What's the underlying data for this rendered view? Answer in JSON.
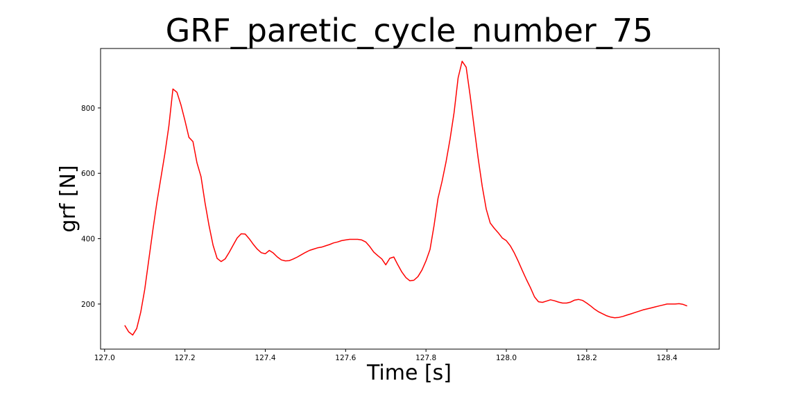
{
  "chart_data": {
    "type": "line",
    "title": "GRF_paretic_cycle_number_75",
    "xlabel": "Time [s]",
    "ylabel": "grf [N]",
    "xlim": [
      126.99,
      128.53
    ],
    "ylim": [
      62,
      982
    ],
    "xticks": [
      127.0,
      127.2,
      127.4,
      127.6,
      127.8,
      128.0,
      128.2,
      128.4
    ],
    "xtick_labels": [
      "127.0",
      "127.2",
      "127.4",
      "127.6",
      "127.8",
      "128.0",
      "128.2",
      "128.4"
    ],
    "yticks": [
      200,
      400,
      600,
      800
    ],
    "ytick_labels": [
      "200",
      "400",
      "600",
      "800"
    ],
    "grid": false,
    "legend": "none",
    "series": [
      {
        "color": "#ff0000",
        "x": [
          127.05,
          127.06,
          127.07,
          127.08,
          127.09,
          127.1,
          127.11,
          127.12,
          127.13,
          127.14,
          127.15,
          127.16,
          127.17,
          127.18,
          127.19,
          127.2,
          127.21,
          127.22,
          127.23,
          127.24,
          127.25,
          127.26,
          127.27,
          127.28,
          127.29,
          127.3,
          127.31,
          127.32,
          127.33,
          127.34,
          127.35,
          127.36,
          127.37,
          127.38,
          127.39,
          127.4,
          127.41,
          127.42,
          127.43,
          127.44,
          127.45,
          127.46,
          127.47,
          127.48,
          127.49,
          127.5,
          127.51,
          127.52,
          127.53,
          127.54,
          127.55,
          127.56,
          127.57,
          127.58,
          127.59,
          127.6,
          127.61,
          127.62,
          127.63,
          127.64,
          127.65,
          127.66,
          127.67,
          127.68,
          127.69,
          127.7,
          127.71,
          127.72,
          127.73,
          127.74,
          127.75,
          127.76,
          127.77,
          127.78,
          127.79,
          127.8,
          127.81,
          127.82,
          127.83,
          127.84,
          127.85,
          127.86,
          127.87,
          127.88,
          127.89,
          127.9,
          127.91,
          127.92,
          127.93,
          127.94,
          127.95,
          127.96,
          127.97,
          127.98,
          127.99,
          128.0,
          128.01,
          128.02,
          128.03,
          128.04,
          128.05,
          128.06,
          128.07,
          128.08,
          128.09,
          128.1,
          128.11,
          128.12,
          128.13,
          128.14,
          128.15,
          128.16,
          128.17,
          128.18,
          128.19,
          128.2,
          128.21,
          128.22,
          128.23,
          128.24,
          128.25,
          128.26,
          128.27,
          128.28,
          128.29,
          128.3,
          128.31,
          128.32,
          128.33,
          128.34,
          128.35,
          128.36,
          128.37,
          128.38,
          128.39,
          128.4,
          128.41,
          128.42,
          128.43,
          128.44,
          128.45
        ],
        "y": [
          135,
          115,
          105,
          125,
          175,
          245,
          335,
          425,
          510,
          585,
          660,
          745,
          858,
          848,
          810,
          762,
          710,
          697,
          632,
          590,
          510,
          440,
          380,
          340,
          330,
          338,
          358,
          380,
          402,
          415,
          414,
          400,
          383,
          368,
          357,
          354,
          364,
          356,
          344,
          335,
          332,
          333,
          338,
          344,
          351,
          358,
          364,
          368,
          372,
          374,
          378,
          382,
          387,
          390,
          394,
          396,
          398,
          398,
          398,
          396,
          390,
          376,
          359,
          348,
          338,
          320,
          340,
          344,
          320,
          298,
          281,
          271,
          273,
          284,
          304,
          332,
          367,
          440,
          523,
          575,
          635,
          705,
          786,
          892,
          943,
          925,
          837,
          740,
          645,
          560,
          490,
          448,
          432,
          418,
          402,
          394,
          378,
          356,
          330,
          302,
          275,
          250,
          222,
          207,
          205,
          209,
          213,
          210,
          206,
          203,
          203,
          206,
          212,
          214,
          211,
          203,
          194,
          184,
          176,
          170,
          164,
          160,
          158,
          159,
          162,
          166,
          170,
          174,
          178,
          182,
          185,
          188,
          191,
          194,
          197,
          200,
          200,
          200,
          201,
          199,
          194
        ]
      }
    ]
  }
}
